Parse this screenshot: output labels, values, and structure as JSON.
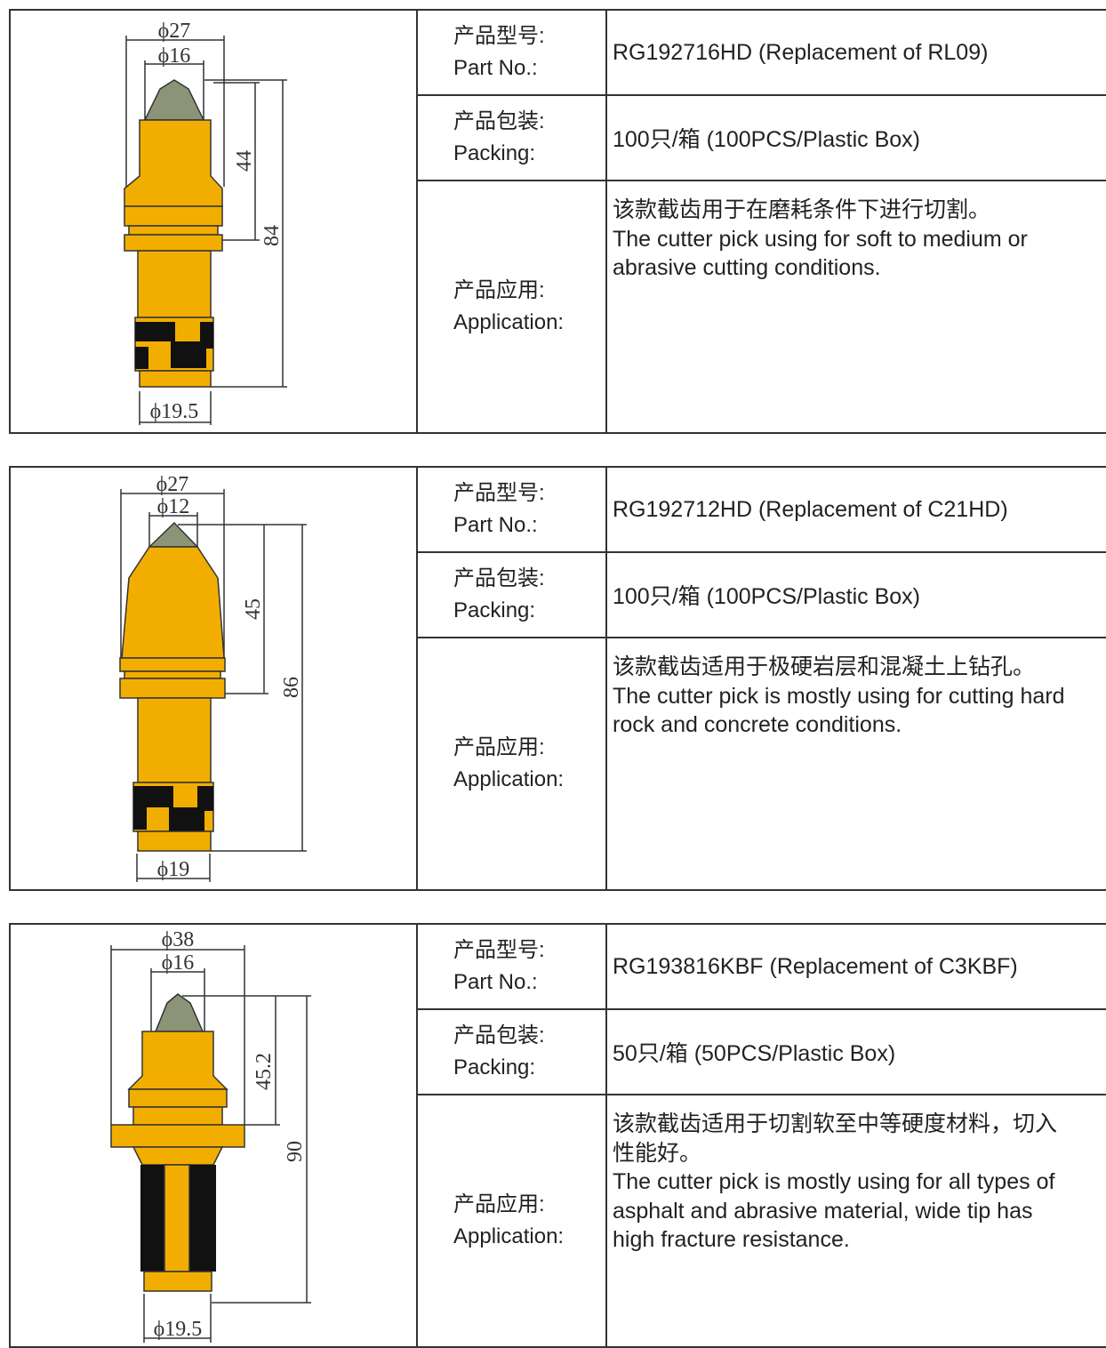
{
  "products": [
    {
      "drawing": {
        "dimensions": [
          "ϕ27",
          "ϕ16",
          "44",
          "84",
          "ϕ19.5"
        ]
      },
      "part_no": {
        "label_zh": "产品型号:",
        "label_en": "Part No.:",
        "value": "RG192716HD (Replacement of RL09)"
      },
      "packing": {
        "label_zh": "产品包装:",
        "label_en": "Packing:",
        "value": "100只/箱 (100PCS/Plastic Box)"
      },
      "application": {
        "label_zh": "产品应用:",
        "label_en": "Application:",
        "lines": [
          "该款截齿用于在磨耗条件下进行切割。",
          "The cutter pick using for soft to medium or",
          "abrasive cutting conditions."
        ]
      }
    },
    {
      "drawing": {
        "dimensions": [
          "ϕ27",
          "ϕ12",
          "45",
          "86",
          "ϕ19"
        ]
      },
      "part_no": {
        "label_zh": "产品型号:",
        "label_en": "Part No.:",
        "value": "RG192712HD (Replacement of C21HD)"
      },
      "packing": {
        "label_zh": "产品包装:",
        "label_en": "Packing:",
        "value": "100只/箱 (100PCS/Plastic Box)"
      },
      "application": {
        "label_zh": "产品应用:",
        "label_en": "Application:",
        "lines": [
          "该款截齿适用于极硬岩层和混凝土上钻孔。",
          "The cutter pick is mostly using for cutting hard",
          "rock and concrete conditions."
        ]
      }
    },
    {
      "drawing": {
        "dimensions": [
          "ϕ38",
          "ϕ16",
          "45.2",
          "90",
          "ϕ19.5"
        ]
      },
      "part_no": {
        "label_zh": "产品型号:",
        "label_en": "Part No.:",
        "value": "RG193816KBF (Replacement of C3KBF)"
      },
      "packing": {
        "label_zh": "产品包装:",
        "label_en": "Packing:",
        "value": "50只/箱 (50PCS/Plastic Box)"
      },
      "application": {
        "label_zh": "产品应用:",
        "label_en": "Application:",
        "lines": [
          "该款截齿适用于切割软至中等硬度材料，切入",
          "性能好。",
          "The cutter pick is mostly using for all types of",
          "asphalt and abrasive material, wide tip has",
          "high fracture resistance."
        ]
      }
    }
  ]
}
